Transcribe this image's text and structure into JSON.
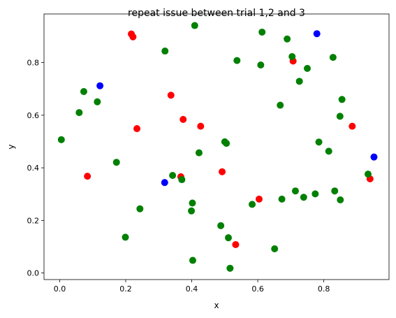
{
  "chart_data": {
    "type": "scatter",
    "title": "repeat issue between trial 1,2 and 3",
    "xlabel": "x",
    "ylabel": "y",
    "xlim": [
      -0.0475,
      0.9975
    ],
    "ylim": [
      -0.025,
      0.985
    ],
    "xticks": [
      0.0,
      0.2,
      0.4,
      0.6,
      0.8
    ],
    "xtick_labels": [
      "0.0",
      "0.2",
      "0.4",
      "0.6",
      "0.8"
    ],
    "yticks": [
      0.0,
      0.2,
      0.4,
      0.6,
      0.8
    ],
    "ytick_labels": [
      "0.0",
      "0.2",
      "0.4",
      "0.6",
      "0.8"
    ],
    "grid": false,
    "series": [
      {
        "color": "#0000ff",
        "points": [
          [
            0.122,
            0.712
          ],
          [
            0.318,
            0.344
          ],
          [
            0.779,
            0.91
          ],
          [
            0.952,
            0.441
          ]
        ]
      },
      {
        "color": "#ff0000",
        "points": [
          [
            0.217,
            0.909
          ],
          [
            0.222,
            0.898
          ],
          [
            0.337,
            0.676
          ],
          [
            0.374,
            0.584
          ],
          [
            0.427,
            0.558
          ],
          [
            0.234,
            0.549
          ],
          [
            0.084,
            0.368
          ],
          [
            0.367,
            0.366
          ],
          [
            0.492,
            0.385
          ],
          [
            0.533,
            0.108
          ],
          [
            0.604,
            0.281
          ],
          [
            0.707,
            0.806
          ],
          [
            0.886,
            0.558
          ],
          [
            0.94,
            0.358
          ]
        ]
      },
      {
        "color": "#008000",
        "points": [
          [
            0.005,
            0.507
          ],
          [
            0.059,
            0.61
          ],
          [
            0.073,
            0.69
          ],
          [
            0.114,
            0.651
          ],
          [
            0.172,
            0.421
          ],
          [
            0.199,
            0.136
          ],
          [
            0.243,
            0.244
          ],
          [
            0.319,
            0.844
          ],
          [
            0.342,
            0.371
          ],
          [
            0.37,
            0.355
          ],
          [
            0.399,
            0.236
          ],
          [
            0.402,
            0.266
          ],
          [
            0.403,
            0.048
          ],
          [
            0.409,
            0.941
          ],
          [
            0.422,
            0.457
          ],
          [
            0.488,
            0.18
          ],
          [
            0.5,
            0.499
          ],
          [
            0.505,
            0.493
          ],
          [
            0.511,
            0.134
          ],
          [
            0.516,
            0.018
          ],
          [
            0.537,
            0.808
          ],
          [
            0.583,
            0.261
          ],
          [
            0.609,
            0.791
          ],
          [
            0.613,
            0.916
          ],
          [
            0.651,
            0.092
          ],
          [
            0.668,
            0.638
          ],
          [
            0.673,
            0.281
          ],
          [
            0.689,
            0.89
          ],
          [
            0.704,
            0.823
          ],
          [
            0.714,
            0.312
          ],
          [
            0.726,
            0.729
          ],
          [
            0.739,
            0.288
          ],
          [
            0.75,
            0.778
          ],
          [
            0.774,
            0.301
          ],
          [
            0.785,
            0.498
          ],
          [
            0.815,
            0.463
          ],
          [
            0.828,
            0.82
          ],
          [
            0.833,
            0.312
          ],
          [
            0.849,
            0.596
          ],
          [
            0.85,
            0.278
          ],
          [
            0.855,
            0.66
          ],
          [
            0.934,
            0.376
          ]
        ]
      }
    ]
  }
}
